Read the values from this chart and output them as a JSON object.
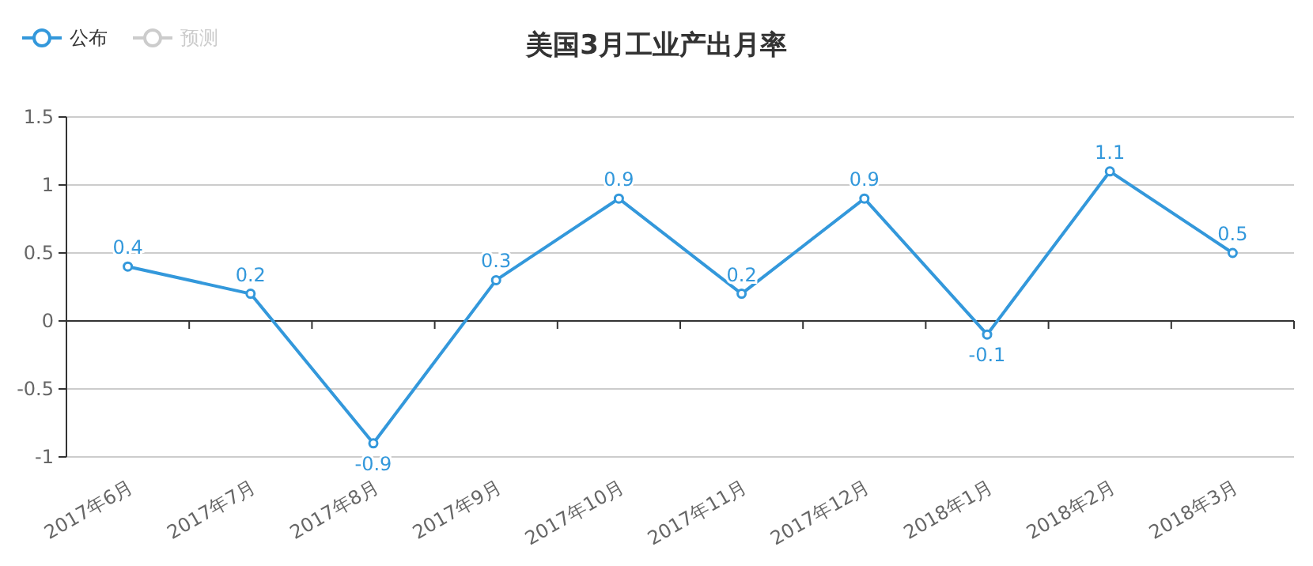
{
  "chart_data": {
    "type": "line",
    "title": "美国3月工业产出月率",
    "categories": [
      "2017年6月",
      "2017年7月",
      "2017年8月",
      "2017年9月",
      "2017年10月",
      "2017年11月",
      "2017年12月",
      "2018年1月",
      "2018年2月",
      "2018年3月"
    ],
    "series": [
      {
        "name": "公布",
        "color": "#3398db",
        "values": [
          0.4,
          0.2,
          -0.9,
          0.3,
          0.9,
          0.2,
          0.9,
          -0.1,
          1.1,
          0.5
        ]
      },
      {
        "name": "预测",
        "color": "#cccccc",
        "values": [
          null,
          null,
          null,
          null,
          null,
          null,
          null,
          null,
          null,
          null
        ]
      }
    ],
    "ylim": [
      -1,
      1.5
    ],
    "yticks": [
      -1,
      -0.5,
      0,
      0.5,
      1,
      1.5
    ],
    "grid": "y",
    "legend": "top left",
    "marker": "circle",
    "data_labels": true
  }
}
